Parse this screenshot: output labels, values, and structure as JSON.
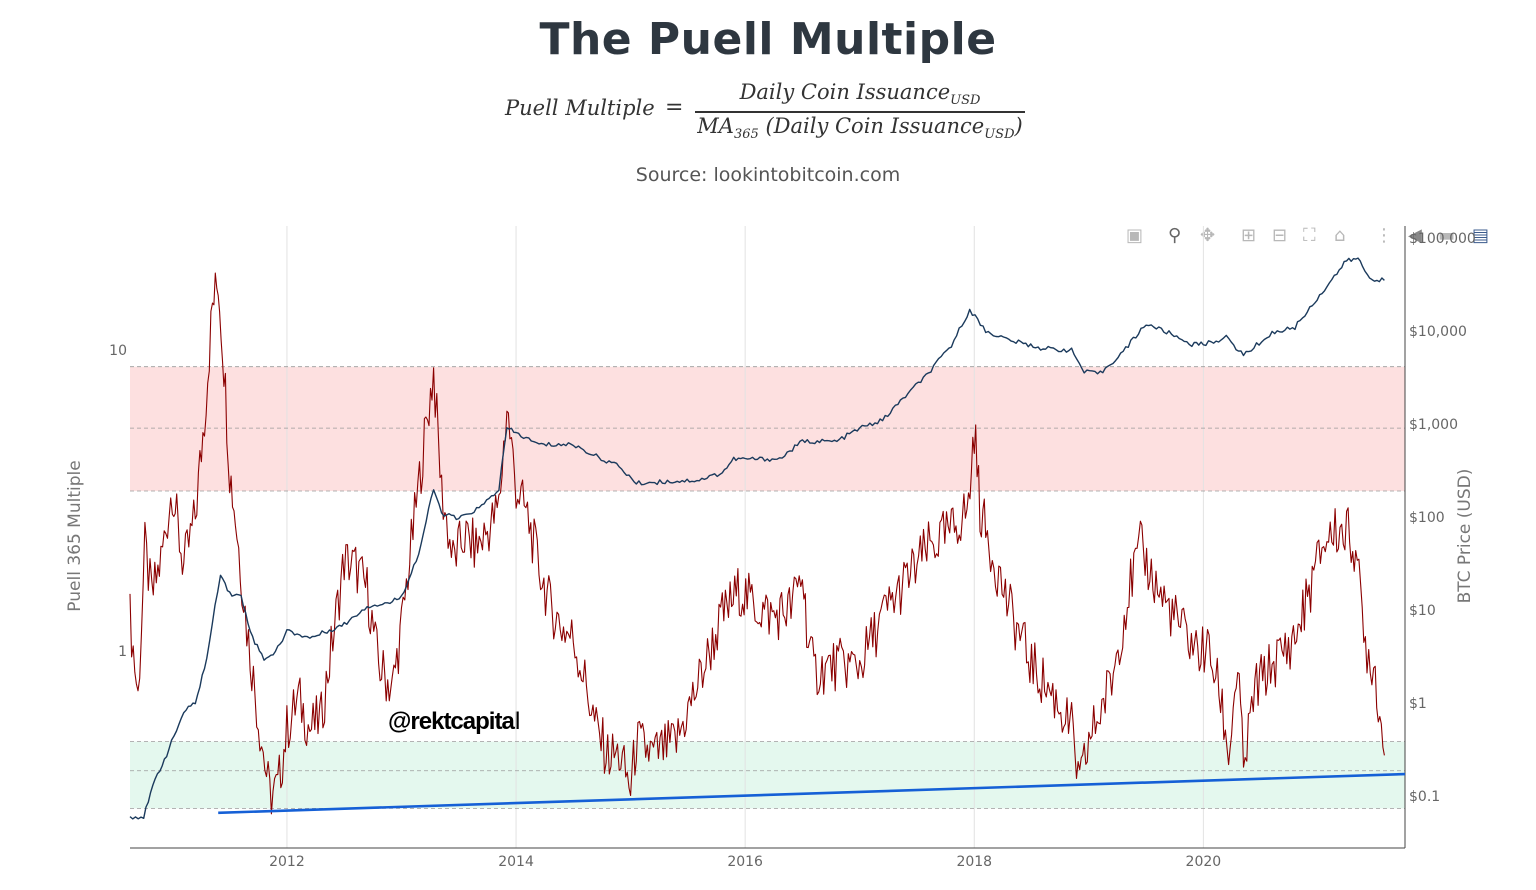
{
  "header": {
    "title": "The Puell Multiple",
    "formula": {
      "lhs": "Puell Multiple",
      "eq": "=",
      "num_main": "Daily Coin Issuance",
      "num_sub": "USD",
      "den_pre": "MA",
      "den_pre_sub": "365",
      "den_main": " (Daily Coin Issuance",
      "den_sub": "USD",
      "den_close": ")"
    },
    "source": "Source: lookintobitcoin.com"
  },
  "watermark": "@rektcapital",
  "modebar": {
    "icons": [
      "camera-icon",
      "zoom-icon",
      "pan-icon",
      "zoom-in-icon",
      "zoom-out-icon",
      "autoscale-icon",
      "home-icon",
      "spike-lines-icon",
      "hover-closest-icon",
      "hover-compare-icon",
      "plotly-logo-icon"
    ]
  },
  "colors": {
    "puell": "#8b0000",
    "price": "#1b3a5c",
    "trendline": "#1560d6",
    "red_band": "#fde0e0",
    "green_band": "#e4f8ee",
    "grid": "#e2e2e2",
    "axis_text": "#666666"
  },
  "chart_data": {
    "type": "line",
    "title": "The Puell Multiple",
    "y_left_label": "Puell 365 Multiple",
    "y_right_label": "BTC Price (USD)",
    "x_ticks": [
      "2012",
      "2014",
      "2016",
      "2018",
      "2020"
    ],
    "x_range": [
      2010.63,
      2021.76
    ],
    "y_left_scale": "log",
    "y_left_ticks": [
      {
        "value": 10,
        "label": "10"
      },
      {
        "value": 1,
        "label": "1"
      }
    ],
    "y_right_scale": "log",
    "y_right_ticks": [
      {
        "value": 100000,
        "label": "$100,000"
      },
      {
        "value": 10000,
        "label": "$10,000"
      },
      {
        "value": 1000,
        "label": "$1,000"
      },
      {
        "value": 100,
        "label": "$100"
      },
      {
        "value": 10,
        "label": "$10"
      },
      {
        "value": 1,
        "label": "$1"
      },
      {
        "value": 0.1,
        "label": "$0.1"
      }
    ],
    "bands": [
      {
        "name": "red-zone",
        "y_left_from": 3.4,
        "y_left_to": 8.8
      },
      {
        "name": "green-zone",
        "y_left_from": 0.3,
        "y_left_to": 0.5
      }
    ],
    "dashed_lines_y_left": [
      8.8,
      5.5,
      3.4,
      0.5,
      0.4,
      0.3
    ],
    "trendline": {
      "x": [
        2011.4,
        2021.76
      ],
      "y_left": [
        0.29,
        0.39
      ]
    },
    "series": [
      {
        "id": "puell",
        "axis": "left",
        "x": [
          2010.63,
          2010.7,
          2010.76,
          2010.82,
          2010.9,
          2011.0,
          2011.05,
          2011.1,
          2011.2,
          2011.28,
          2011.35,
          2011.4,
          2011.45,
          2011.5,
          2011.55,
          2011.65,
          2011.75,
          2011.85,
          2011.92,
          2012.0,
          2012.1,
          2012.2,
          2012.3,
          2012.4,
          2012.5,
          2012.6,
          2012.7,
          2012.8,
          2012.92,
          2013.0,
          2013.1,
          2013.2,
          2013.28,
          2013.35,
          2013.45,
          2013.55,
          2013.65,
          2013.75,
          2013.85,
          2013.92,
          2014.0,
          2014.1,
          2014.2,
          2014.3,
          2014.4,
          2014.5,
          2014.6,
          2014.7,
          2014.8,
          2014.9,
          2015.0,
          2015.05,
          2015.2,
          2015.4,
          2015.6,
          2015.8,
          2015.95,
          2016.1,
          2016.25,
          2016.4,
          2016.5,
          2016.55,
          2016.6,
          2016.8,
          2017.0,
          2017.2,
          2017.4,
          2017.6,
          2017.8,
          2017.95,
          2018.0,
          2018.05,
          2018.1,
          2018.3,
          2018.5,
          2018.7,
          2018.85,
          2018.92,
          2019.0,
          2019.2,
          2019.35,
          2019.45,
          2019.6,
          2019.8,
          2019.95,
          2020.05,
          2020.15,
          2020.22,
          2020.3,
          2020.35,
          2020.45,
          2020.6,
          2020.8,
          2020.95,
          2021.05,
          2021.15,
          2021.25,
          2021.33,
          2021.4,
          2021.5,
          2021.58
        ],
        "y": [
          1.3,
          0.7,
          2.2,
          1.5,
          2.0,
          3.5,
          2.5,
          1.9,
          2.8,
          6.0,
          14.0,
          17.0,
          9.0,
          4.0,
          2.8,
          1.2,
          0.6,
          0.33,
          0.35,
          0.55,
          0.7,
          0.55,
          0.6,
          1.1,
          2.0,
          1.9,
          1.6,
          0.9,
          0.75,
          1.2,
          2.5,
          5.0,
          8.5,
          3.4,
          2.0,
          2.4,
          2.2,
          2.5,
          3.0,
          6.5,
          3.5,
          2.8,
          1.9,
          1.4,
          1.2,
          1.1,
          0.8,
          0.55,
          0.45,
          0.45,
          0.35,
          0.5,
          0.45,
          0.5,
          0.8,
          1.3,
          1.6,
          1.4,
          1.3,
          1.4,
          1.8,
          1.1,
          0.85,
          0.9,
          0.9,
          1.3,
          1.7,
          2.2,
          2.5,
          3.0,
          5.5,
          3.0,
          2.5,
          1.4,
          0.9,
          0.7,
          0.55,
          0.35,
          0.5,
          0.8,
          1.6,
          2.2,
          1.6,
          1.2,
          1.0,
          1.0,
          0.7,
          0.45,
          0.9,
          0.4,
          0.75,
          0.9,
          1.1,
          1.7,
          2.3,
          2.5,
          2.5,
          2.2,
          1.1,
          0.85,
          0.45
        ]
      },
      {
        "id": "btc-price",
        "axis": "right",
        "x": [
          2010.63,
          2010.75,
          2010.85,
          2010.95,
          2011.1,
          2011.2,
          2011.3,
          2011.42,
          2011.5,
          2011.6,
          2011.7,
          2011.8,
          2011.9,
          2012.0,
          2012.2,
          2012.5,
          2012.7,
          2012.9,
          2013.0,
          2013.15,
          2013.28,
          2013.35,
          2013.5,
          2013.7,
          2013.85,
          2013.92,
          2014.0,
          2014.2,
          2014.5,
          2014.7,
          2014.9,
          2015.05,
          2015.3,
          2015.6,
          2015.8,
          2015.9,
          2016.0,
          2016.3,
          2016.5,
          2016.8,
          2017.0,
          2017.2,
          2017.4,
          2017.6,
          2017.8,
          2017.96,
          2018.1,
          2018.3,
          2018.6,
          2018.85,
          2018.96,
          2019.1,
          2019.3,
          2019.5,
          2019.7,
          2019.9,
          2020.0,
          2020.2,
          2020.35,
          2020.6,
          2020.8,
          2020.95,
          2021.1,
          2021.25,
          2021.35,
          2021.45,
          2021.58
        ],
        "y": [
          0.06,
          0.06,
          0.15,
          0.28,
          0.8,
          1.0,
          3.0,
          25.0,
          15.0,
          14.0,
          5.0,
          3.0,
          3.5,
          6.0,
          5.0,
          7.0,
          11.0,
          12.0,
          14.0,
          40.0,
          200.0,
          110.0,
          95.0,
          130.0,
          200.0,
          900.0,
          800.0,
          600.0,
          600.0,
          450.0,
          350.0,
          230.0,
          240.0,
          250.0,
          300.0,
          420.0,
          420.0,
          420.0,
          650.0,
          650.0,
          900.0,
          1100.0,
          2000.0,
          3500.0,
          7000.0,
          17000.0,
          10000.0,
          8000.0,
          6500.0,
          6200.0,
          3600.0,
          3500.0,
          6000.0,
          12000.0,
          9500.0,
          7200.0,
          7200.0,
          8500.0,
          5500.0,
          9500.0,
          11000.0,
          19000.0,
          33000.0,
          57000.0,
          60000.0,
          37000.0,
          35000.0
        ]
      }
    ]
  }
}
